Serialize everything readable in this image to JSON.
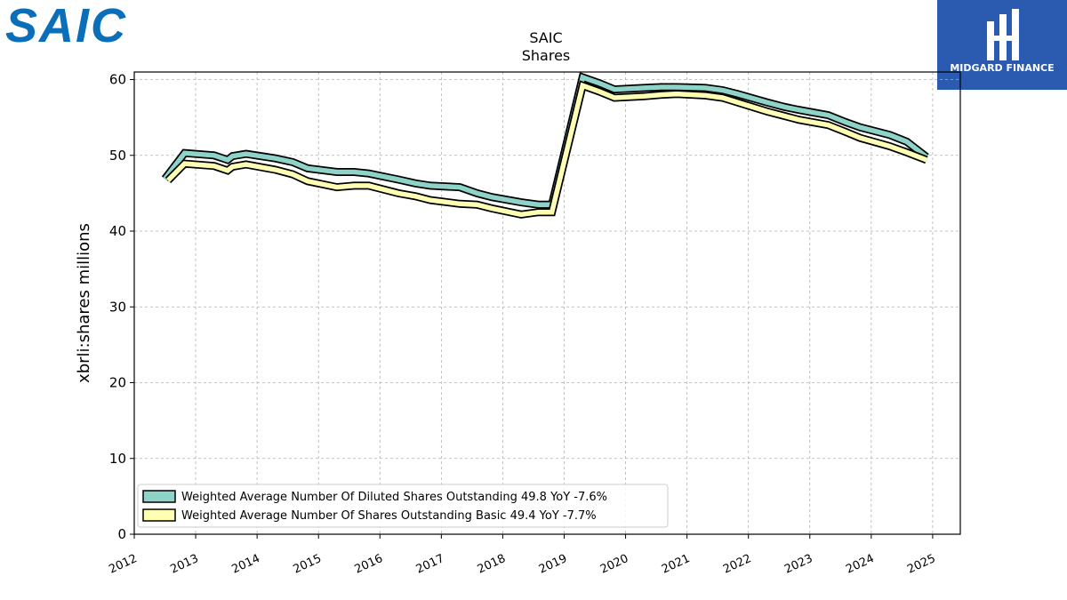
{
  "brand": {
    "left_logo_text": "SAIC",
    "left_logo_color": "#0a6fb8",
    "right_logo_text": "MIDGARD FINANCE",
    "right_logo_bg": "#2a5bb0"
  },
  "chart_data": {
    "type": "line",
    "title": "SAIC",
    "subtitle": "Shares",
    "xlabel": "",
    "ylabel": "xbrli:shares millions",
    "xlim": [
      2012.0,
      2025.45
    ],
    "ylim": [
      0,
      61
    ],
    "x_ticks": [
      "2012",
      "2013",
      "2014",
      "2015",
      "2016",
      "2017",
      "2018",
      "2019",
      "2020",
      "2021",
      "2022",
      "2023",
      "2024",
      "2025"
    ],
    "y_ticks": [
      0,
      10,
      20,
      30,
      40,
      50,
      60
    ],
    "grid": true,
    "legend_position": "bottom-left",
    "series": [
      {
        "name": "Weighted Average Number Of Diluted Shares Outstanding",
        "legend_label": "Weighted Average Number Of Diluted Shares Outstanding  49.8 YoY -7.6%",
        "color": "#8dd3c7",
        "points": [
          [
            2012.5,
            46.9
          ],
          [
            2012.82,
            50.3
          ],
          [
            2013.3,
            50.0
          ],
          [
            2013.52,
            49.4
          ],
          [
            2013.6,
            49.9
          ],
          [
            2013.82,
            50.2
          ],
          [
            2014.3,
            49.6
          ],
          [
            2014.58,
            49.1
          ],
          [
            2014.82,
            48.3
          ],
          [
            2015.3,
            47.8
          ],
          [
            2015.58,
            47.8
          ],
          [
            2015.82,
            47.6
          ],
          [
            2016.3,
            46.8
          ],
          [
            2016.58,
            46.3
          ],
          [
            2016.82,
            46.0
          ],
          [
            2017.3,
            45.8
          ],
          [
            2017.58,
            45.0
          ],
          [
            2017.82,
            44.5
          ],
          [
            2018.3,
            43.8
          ],
          [
            2018.58,
            43.5
          ],
          [
            2018.8,
            43.5
          ],
          [
            2019.3,
            60.3
          ],
          [
            2019.58,
            59.5
          ],
          [
            2019.82,
            58.7
          ],
          [
            2020.3,
            58.9
          ],
          [
            2020.58,
            59.0
          ],
          [
            2020.82,
            59.0
          ],
          [
            2021.3,
            58.9
          ],
          [
            2021.58,
            58.6
          ],
          [
            2021.82,
            58.1
          ],
          [
            2022.3,
            57.0
          ],
          [
            2022.58,
            56.4
          ],
          [
            2022.82,
            56.0
          ],
          [
            2023.3,
            55.3
          ],
          [
            2023.58,
            54.4
          ],
          [
            2023.82,
            53.7
          ],
          [
            2024.3,
            52.7
          ],
          [
            2024.58,
            51.8
          ],
          [
            2024.9,
            49.8
          ]
        ]
      },
      {
        "name": "Weighted Average Number Of Shares Outstanding Basic",
        "legend_label": "Weighted Average Number Of Shares Outstanding Basic  49.4 YoY -7.7%",
        "color": "#ffffb3",
        "points": [
          [
            2012.55,
            46.7
          ],
          [
            2012.82,
            48.9
          ],
          [
            2013.3,
            48.6
          ],
          [
            2013.52,
            48.0
          ],
          [
            2013.6,
            48.5
          ],
          [
            2013.82,
            48.8
          ],
          [
            2014.3,
            48.1
          ],
          [
            2014.58,
            47.5
          ],
          [
            2014.82,
            46.6
          ],
          [
            2015.3,
            45.8
          ],
          [
            2015.58,
            46.0
          ],
          [
            2015.82,
            46.0
          ],
          [
            2016.3,
            45.0
          ],
          [
            2016.58,
            44.6
          ],
          [
            2016.82,
            44.1
          ],
          [
            2017.3,
            43.6
          ],
          [
            2017.58,
            43.5
          ],
          [
            2017.82,
            43.0
          ],
          [
            2018.3,
            42.2
          ],
          [
            2018.58,
            42.5
          ],
          [
            2018.8,
            42.5
          ],
          [
            2019.3,
            59.2
          ],
          [
            2019.58,
            58.4
          ],
          [
            2019.82,
            57.6
          ],
          [
            2020.3,
            57.8
          ],
          [
            2020.58,
            58.0
          ],
          [
            2020.82,
            58.1
          ],
          [
            2021.3,
            57.9
          ],
          [
            2021.58,
            57.6
          ],
          [
            2021.82,
            57.0
          ],
          [
            2022.3,
            55.8
          ],
          [
            2022.58,
            55.2
          ],
          [
            2022.82,
            54.7
          ],
          [
            2023.3,
            54.0
          ],
          [
            2023.58,
            53.1
          ],
          [
            2023.82,
            52.3
          ],
          [
            2024.3,
            51.2
          ],
          [
            2024.58,
            50.4
          ],
          [
            2024.9,
            49.4
          ]
        ]
      }
    ]
  }
}
